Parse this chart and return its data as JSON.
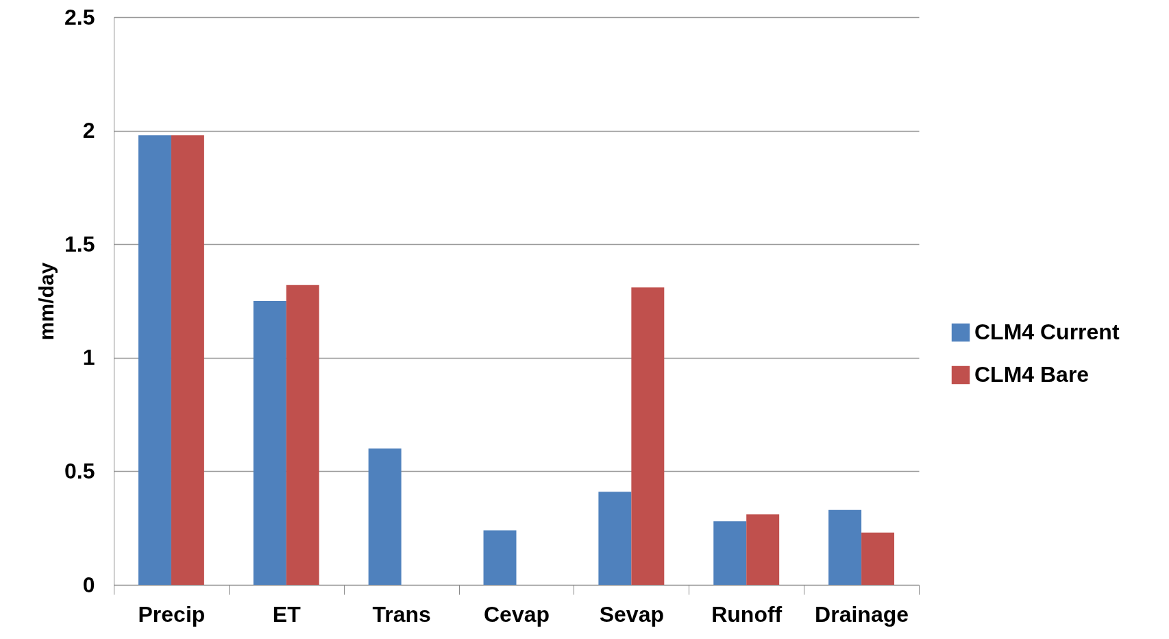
{
  "chart_data": {
    "type": "bar",
    "ylabel": "mm/day",
    "categories": [
      "Precip",
      "ET",
      "Trans",
      "Cevap",
      "Sevap",
      "Runoff",
      "Drainage"
    ],
    "series": [
      {
        "name": "CLM4 Current",
        "color": "#4f81bd",
        "values": [
          1.98,
          1.25,
          0.6,
          0.24,
          0.41,
          0.28,
          0.33
        ]
      },
      {
        "name": "CLM4 Bare",
        "color": "#c0504d",
        "values": [
          1.98,
          1.32,
          0,
          0,
          1.31,
          0.31,
          0.23
        ]
      }
    ],
    "ylim": [
      0,
      2.5
    ],
    "yticks": [
      0,
      0.5,
      1,
      1.5,
      2,
      2.5
    ],
    "grid": "y",
    "legend": "right"
  }
}
